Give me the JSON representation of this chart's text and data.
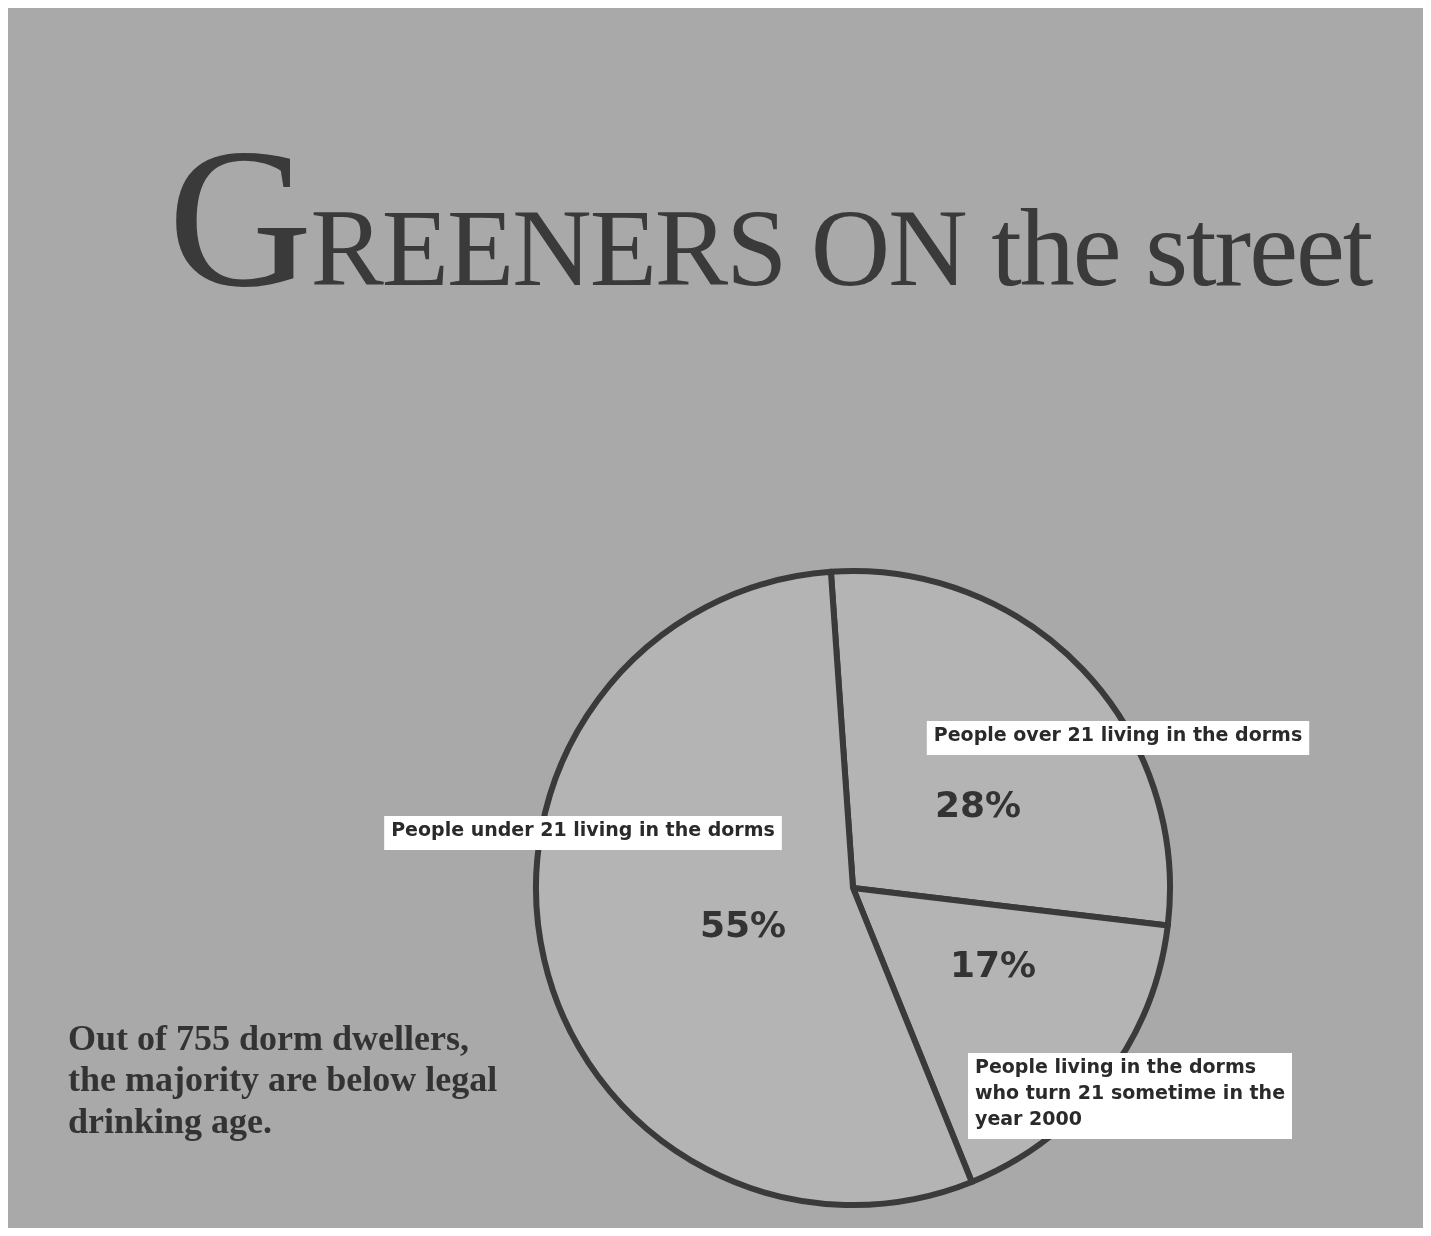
{
  "chart_data": {
    "type": "pie",
    "title": "GREENERS ON the street",
    "categories": [
      "People over 21 living in the dorms",
      "People living in the dorms who turn 21 sometime in the year 2000",
      "People under 21 living in the dorms"
    ],
    "values": [
      28,
      17,
      55
    ],
    "value_labels": [
      "28%",
      "17%",
      "55%"
    ],
    "colors": [
      "#b4b4b4",
      "#b4b4b4",
      "#b4b4b4"
    ],
    "annotations": [
      "Out of 755 dorm dwellers, the majority are below legal drinking age."
    ]
  }
}
